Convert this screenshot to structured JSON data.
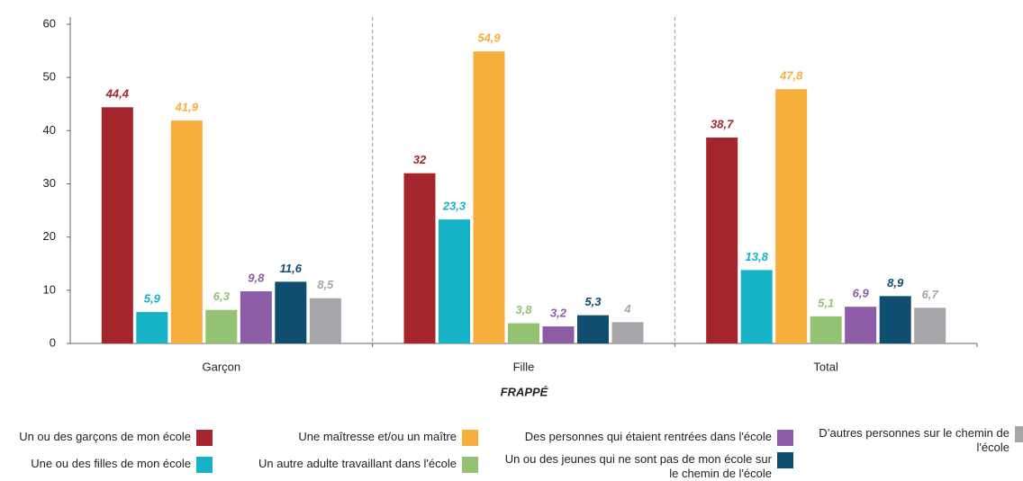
{
  "chart_data": {
    "type": "bar",
    "categories": [
      "Garçon",
      "Fille",
      "Total"
    ],
    "x_label": "FRAPPÉ",
    "ylim": [
      0,
      60
    ],
    "yticks": [
      0,
      10,
      20,
      30,
      40,
      50,
      60
    ],
    "series": [
      {
        "name": "Un ou des garçons de mon école",
        "color": "#a4262c",
        "values": [
          44.4,
          32,
          38.7
        ],
        "value_labels": [
          "44,4",
          "32",
          "38,7"
        ]
      },
      {
        "name": "Une ou des filles de mon école",
        "color": "#15b3c5",
        "values": [
          5.9,
          23.3,
          13.8
        ],
        "value_labels": [
          "5,9",
          "23,3",
          "13,8"
        ]
      },
      {
        "name": "Une maîtresse et/ou un maître",
        "color": "#f8ae3c",
        "values": [
          41.9,
          54.9,
          47.8
        ],
        "value_labels": [
          "41,9",
          "54,9",
          "47,8"
        ]
      },
      {
        "name": "Un autre adulte travaillant dans l'école",
        "color": "#94c273",
        "values": [
          6.3,
          3.8,
          5.1
        ],
        "value_labels": [
          "6,3",
          "3,8",
          "5,1"
        ]
      },
      {
        "name": "Des personnes qui étaient rentrées dans l'école",
        "color": "#8e5ba6",
        "values": [
          9.8,
          3.2,
          6.9
        ],
        "value_labels": [
          "9,8",
          "3,2",
          "6,9"
        ]
      },
      {
        "name": "Un ou des jeunes qui ne sont pas de mon école sur le chemin de l'école",
        "color": "#0f4d71",
        "values": [
          11.6,
          5.3,
          8.9
        ],
        "value_labels": [
          "11,6",
          "5,3",
          "8,9"
        ]
      },
      {
        "name": "D’autres personnes sur le chemin de l'école",
        "color": "#a6a6aa",
        "values": [
          8.5,
          4,
          6.7
        ],
        "value_labels": [
          "8,5",
          "4",
          "6,7"
        ]
      }
    ]
  }
}
